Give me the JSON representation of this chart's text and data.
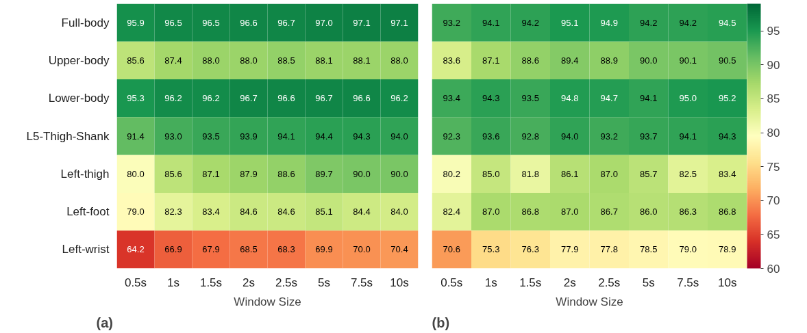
{
  "chart_data": [
    {
      "type": "heatmap",
      "xlabel": "Window Size",
      "annotations": [
        "(a)"
      ],
      "data_labels": true,
      "categories": [
        "0.5s",
        "1s",
        "1.5s",
        "2s",
        "2.5s",
        "5s",
        "7.5s",
        "10s"
      ],
      "y_categories": [
        "Full-body",
        "Upper-body",
        "Lower-body",
        "L5-Thigh-Shank",
        "Left-thigh",
        "Left-foot",
        "Left-wrist"
      ],
      "cells": [
        [
          95.9,
          96.5,
          96.5,
          96.6,
          96.7,
          97.0,
          97.1,
          97.1
        ],
        [
          85.6,
          87.4,
          88.0,
          88.0,
          88.5,
          88.1,
          88.1,
          88.0
        ],
        [
          95.3,
          96.2,
          96.2,
          96.7,
          96.6,
          96.7,
          96.6,
          96.2
        ],
        [
          91.4,
          93.0,
          93.5,
          93.9,
          94.1,
          94.4,
          94.3,
          94.0
        ],
        [
          80.0,
          85.6,
          87.1,
          87.9,
          88.6,
          89.7,
          90.0,
          90.0
        ],
        [
          79.0,
          82.3,
          83.4,
          84.6,
          84.6,
          85.1,
          84.4,
          84.0
        ],
        [
          64.2,
          66.9,
          67.9,
          68.5,
          68.3,
          69.9,
          70.0,
          70.4
        ]
      ],
      "cell_labels": [
        [
          "95.9",
          "96.5",
          "96.5",
          "96.6",
          "96.7",
          "97.0",
          "97.1",
          "97.1"
        ],
        [
          "85.6",
          "87.4",
          "88.0",
          "88.0",
          "88.5",
          "88.1",
          "88.1",
          "88.0"
        ],
        [
          "95.3",
          "96.2",
          "96.2",
          "96.7",
          "96.6",
          "96.7",
          "96.6",
          "96.2"
        ],
        [
          "91.4",
          "93.0",
          "93.5",
          "93.9",
          "94.1",
          "94.4",
          "94.3",
          "94.0"
        ],
        [
          "80.0",
          "85.6",
          "87.1",
          "87.9",
          "88.6",
          "89.7",
          "90.0",
          "90.0"
        ],
        [
          "79.0",
          "82.3",
          "83.4",
          "84.6",
          "84.6",
          "85.1",
          "84.4",
          "84.0"
        ],
        [
          "64.2",
          "66.9",
          "67.9",
          "68.5",
          "68.3",
          "69.9",
          "70.0",
          "70.4"
        ]
      ]
    },
    {
      "type": "heatmap",
      "xlabel": "Window Size",
      "annotations": [
        "(b)"
      ],
      "data_labels": true,
      "tick_labels": "x",
      "categories": [
        "0.5s",
        "1s",
        "1.5s",
        "2s",
        "2.5s",
        "5s",
        "7.5s",
        "10s"
      ],
      "y_categories": [
        null,
        null,
        null,
        null,
        null,
        null,
        null
      ],
      "cells": [
        [
          93.2,
          94.1,
          94.2,
          95.1,
          94.9,
          94.2,
          94.2,
          94.5
        ],
        [
          83.6,
          87.1,
          88.6,
          89.4,
          88.9,
          90.0,
          90.1,
          90.5
        ],
        [
          93.4,
          94.3,
          93.5,
          94.8,
          94.7,
          94.1,
          95.0,
          95.2
        ],
        [
          92.3,
          93.6,
          92.8,
          94.0,
          93.2,
          93.7,
          94.1,
          94.3
        ],
        [
          80.2,
          85.0,
          81.8,
          86.1,
          87.0,
          85.7,
          82.5,
          83.4
        ],
        [
          82.4,
          87.0,
          86.8,
          87.0,
          86.7,
          86.0,
          86.3,
          86.8
        ],
        [
          70.6,
          75.3,
          76.3,
          77.9,
          77.8,
          78.5,
          79.0,
          78.9
        ]
      ],
      "cell_labels": [
        [
          "93.2",
          "94.1",
          "94.2",
          "95.1",
          "94.9",
          "94.2",
          "94.2",
          "94.5"
        ],
        [
          "83.6",
          "87.1",
          "88.6",
          "89.4",
          "88.9",
          "90.0",
          "90.1",
          "90.5"
        ],
        [
          "93.4",
          "94.3",
          "93.5",
          "94.8",
          "94.7",
          "94.1",
          "95.0",
          "95.2"
        ],
        [
          "92.3",
          "93.6",
          "92.8",
          "94.0",
          "93.2",
          "93.7",
          "94.1",
          "94.3"
        ],
        [
          "80.2",
          "85.0",
          "81.8",
          "86.1",
          "87.0",
          "85.7",
          "82.5",
          "83.4"
        ],
        [
          "82.4",
          "87.0",
          "86.8",
          "87.0",
          "86.7",
          "86.0",
          "86.3",
          "86.8"
        ],
        [
          "70.6",
          "75.3",
          "76.3",
          "77.9",
          "77.8",
          "78.5",
          "79.0",
          "78.9"
        ]
      ],
      "clim": [
        60,
        99
      ],
      "cticks": [
        60,
        65,
        70,
        75,
        80,
        85,
        90,
        95
      ]
    }
  ]
}
